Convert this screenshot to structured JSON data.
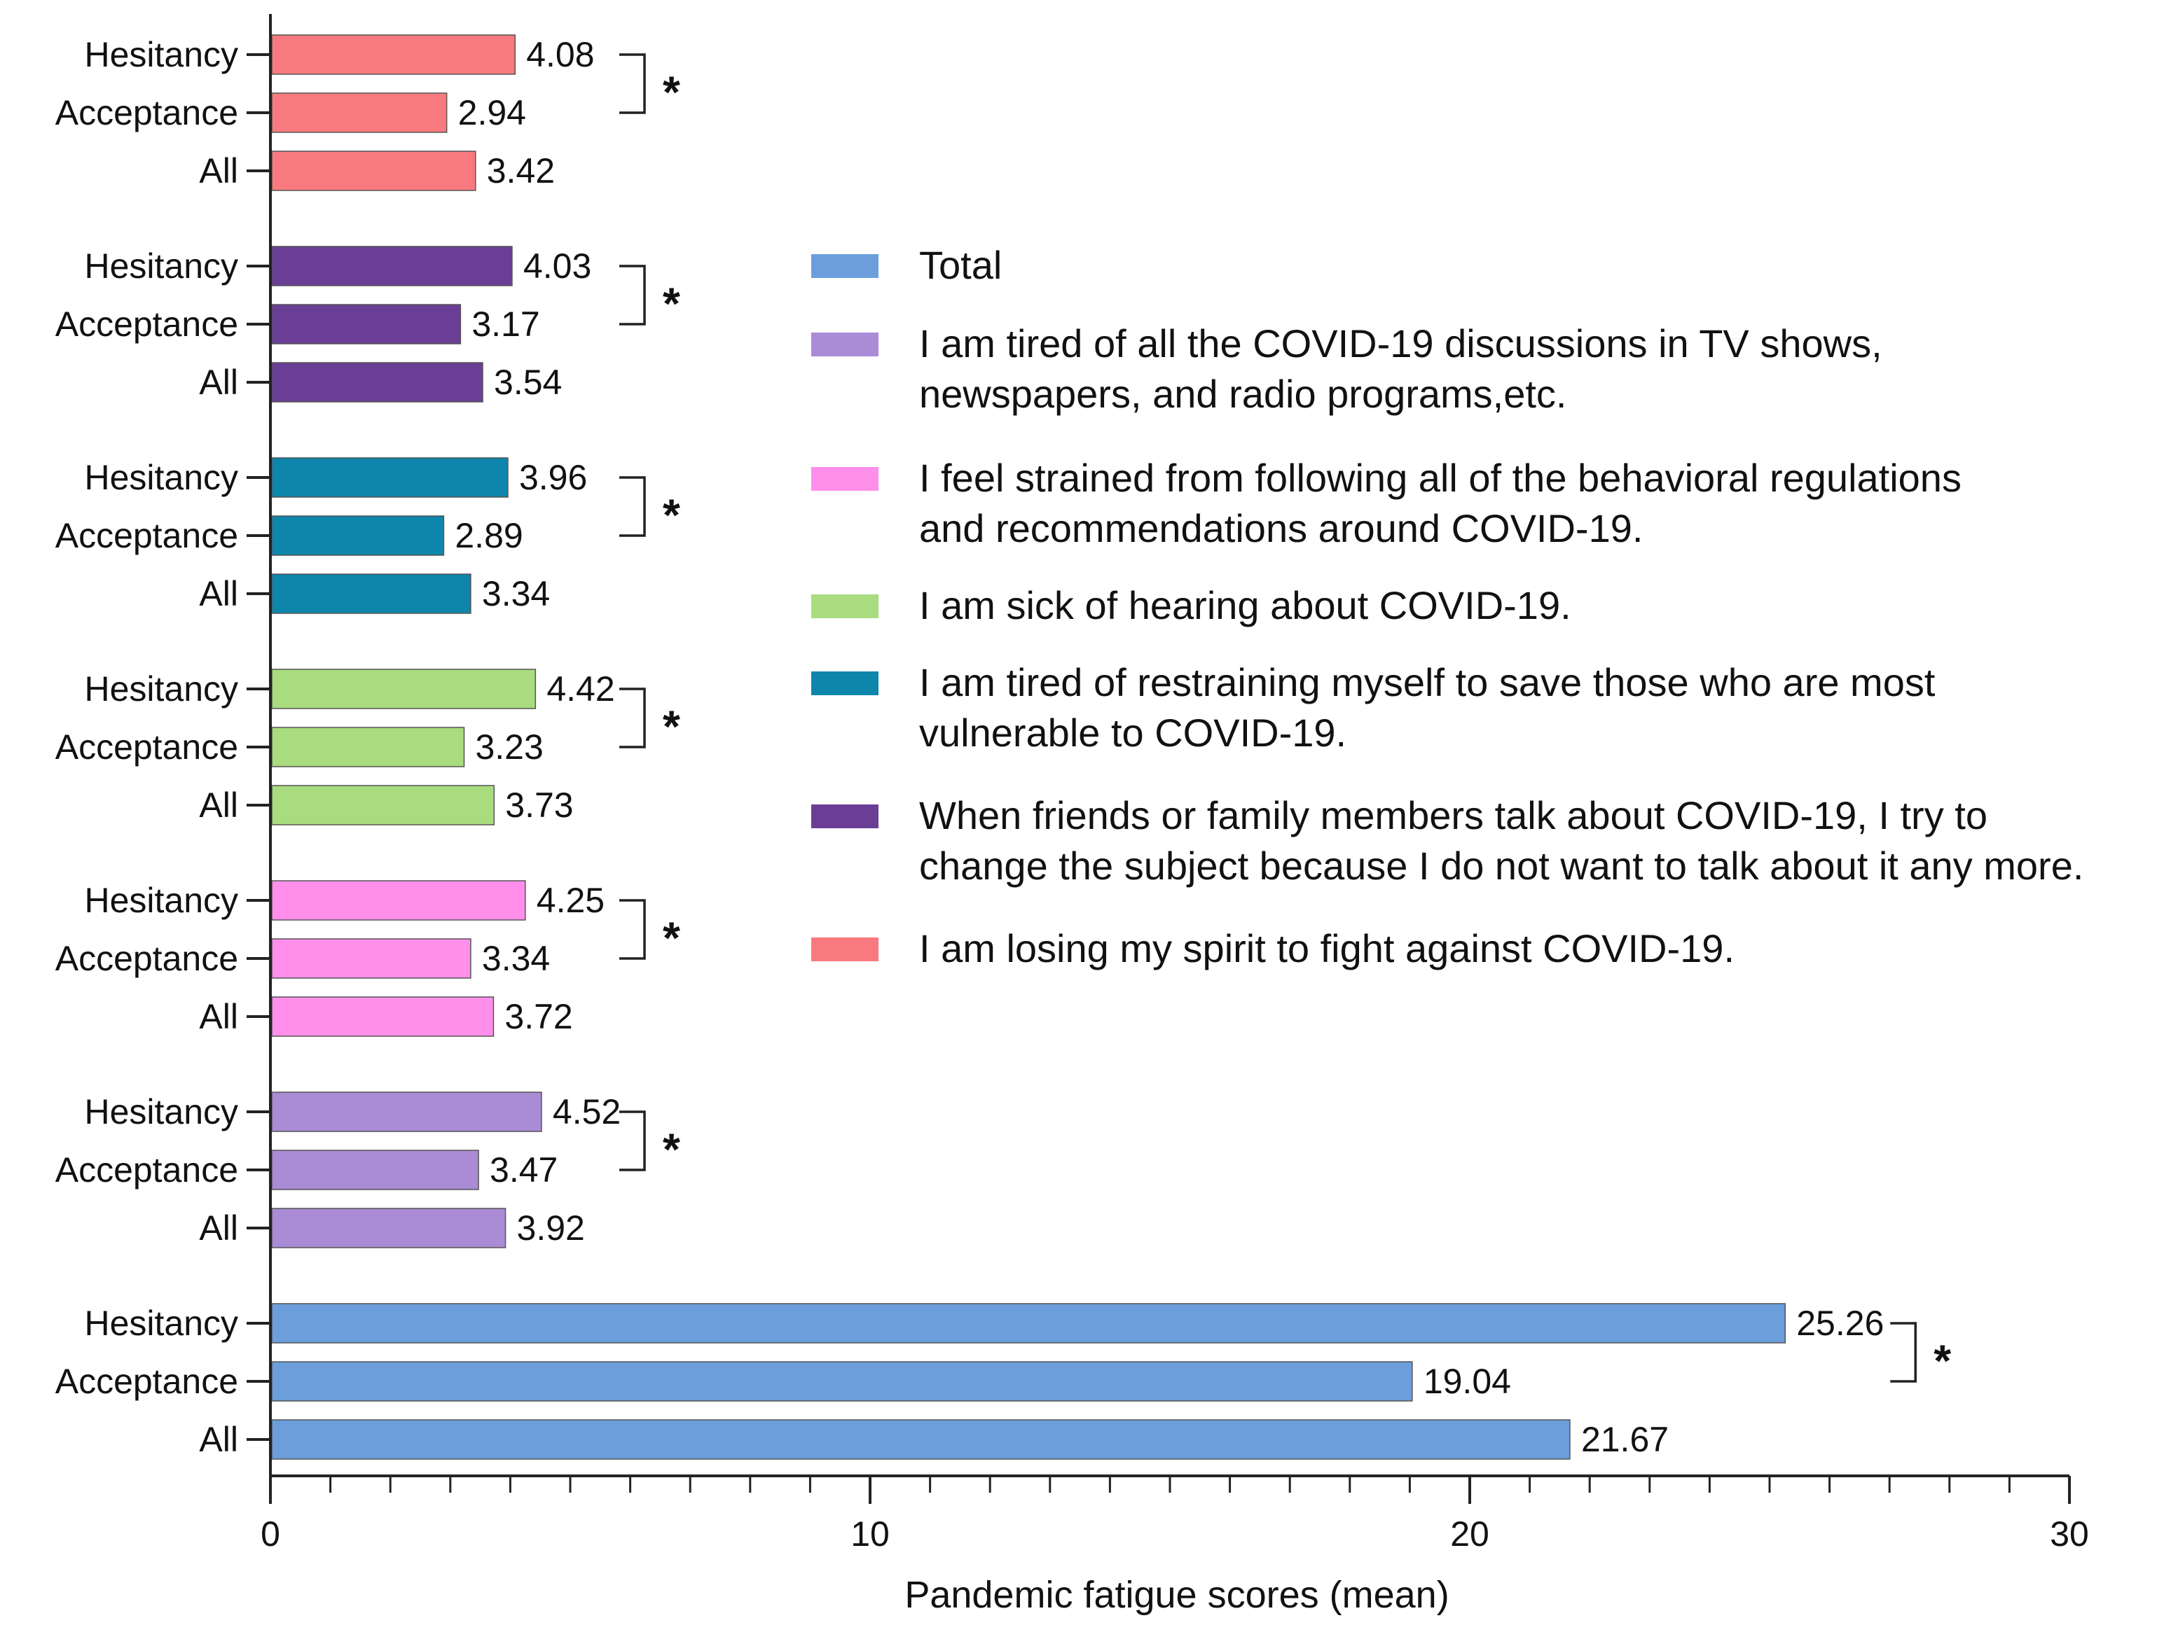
{
  "chart_data": {
    "type": "bar",
    "orientation": "horizontal",
    "title": "",
    "xlabel": "Pandemic fatigue scores (mean)",
    "ylabel": "",
    "xlim": [
      0,
      30
    ],
    "x_ticks": [
      0,
      10,
      20,
      30
    ],
    "x_tick_labels": [
      "0",
      "10",
      "20",
      "30"
    ],
    "categories": [
      "Hesitancy",
      "Acceptance",
      "All"
    ],
    "significance_marker": "*",
    "legend_position": "right",
    "legend": [
      {
        "label": "Total",
        "color": "#6b9edb"
      },
      {
        "label": "I am tired of all the COVID-19 discussions in TV shows, newspapers, and radio programs,etc.",
        "lines": [
          "I am tired of all the COVID-19 discussions in TV shows,",
          "newspapers, and radio programs,etc."
        ],
        "color": "#a98bd6"
      },
      {
        "label": "I feel strained from following all of the behavioral regulations and recommendations around COVID-19.",
        "lines": [
          "I feel strained from following all of the behavioral regulations",
          "and recommendations around COVID-19."
        ],
        "color": "#ff8fea"
      },
      {
        "label": "I am sick of hearing about COVID-19.",
        "lines": [
          "I am sick of hearing about COVID-19."
        ],
        "color": "#a8dc7e"
      },
      {
        "label": "I am tired of restraining myself to save those who are most vulnerable to COVID-19.",
        "lines": [
          "I am tired of restraining myself to save those who are most",
          "vulnerable to COVID-19."
        ],
        "color": "#0e86ac"
      },
      {
        "label": "When friends or family members talk about COVID-19, I try to change the subject because I do not want to talk about it any more.",
        "lines": [
          "When friends or family members talk about COVID-19, I try to",
          "change the subject because I do not want to talk about it any more."
        ],
        "color": "#6a3e95"
      },
      {
        "label": "I am losing my spirit to fight against COVID-19.",
        "lines": [
          "I am losing my spirit to fight against COVID-19."
        ],
        "color": "#f97a7e"
      }
    ],
    "series": [
      {
        "name": "I am losing my spirit to fight against COVID-19.",
        "color": "#f97a7e",
        "values": [
          4.08,
          2.94,
          3.42
        ],
        "value_labels": [
          "4.08",
          "2.94",
          "3.42"
        ],
        "significant": true
      },
      {
        "name": "When friends or family members talk about COVID-19, I try to change the subject because I do not want to talk about it any more.",
        "color": "#6a3e95",
        "values": [
          4.03,
          3.17,
          3.54
        ],
        "value_labels": [
          "4.03",
          "3.17",
          "3.54"
        ],
        "significant": true
      },
      {
        "name": "I am tired of restraining myself to save those who are most vulnerable to COVID-19.",
        "color": "#0e86ac",
        "values": [
          3.96,
          2.89,
          3.34
        ],
        "value_labels": [
          "3.96",
          "2.89",
          "3.34"
        ],
        "significant": true
      },
      {
        "name": "I am sick of hearing about COVID-19.",
        "color": "#a8dc7e",
        "values": [
          4.42,
          3.23,
          3.73
        ],
        "value_labels": [
          "4.42",
          "3.23",
          "3.73"
        ],
        "significant": true
      },
      {
        "name": "I feel strained from following all of the behavioral regulations and recommendations around COVID-19.",
        "color": "#ff8fea",
        "values": [
          4.25,
          3.34,
          3.72
        ],
        "value_labels": [
          "4.25",
          "3.34",
          "3.72"
        ],
        "significant": true
      },
      {
        "name": "I am tired of all the COVID-19 discussions in TV shows, newspapers, and radio programs,etc.",
        "color": "#a98bd6",
        "values": [
          4.52,
          3.47,
          3.92
        ],
        "value_labels": [
          "4.52",
          "3.47",
          "3.92"
        ],
        "significant": true
      },
      {
        "name": "Total",
        "color": "#6b9edb",
        "values": [
          25.26,
          19.04,
          21.67
        ],
        "value_labels": [
          "25.26",
          "19.04",
          "21.67"
        ],
        "significant": true
      }
    ]
  }
}
